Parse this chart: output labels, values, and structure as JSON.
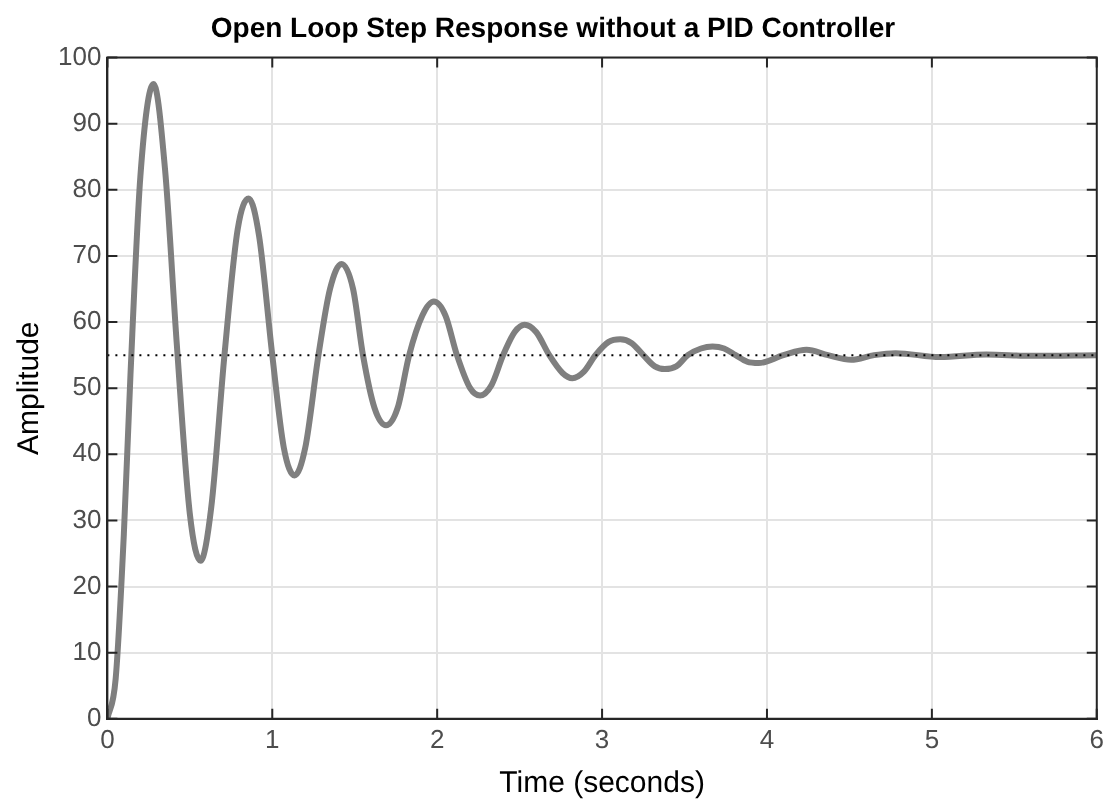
{
  "chart_data": {
    "type": "line",
    "title": "Open Loop Step Response without a PID Controller",
    "xlabel": "Time (seconds)",
    "ylabel": "Amplitude",
    "x": [
      0,
      0.05,
      0.1,
      0.14,
      0.2,
      0.28,
      0.35,
      0.42,
      0.5,
      0.565,
      0.63,
      0.71,
      0.79,
      0.857,
      0.92,
      1.0,
      1.07,
      1.135,
      1.2,
      1.28,
      1.35,
      1.42,
      1.49,
      1.55,
      1.62,
      1.69,
      1.76,
      1.83,
      1.91,
      1.98,
      2.05,
      2.12,
      2.2,
      2.26,
      2.33,
      2.4,
      2.47,
      2.53,
      2.6,
      2.68,
      2.76,
      2.82,
      2.89,
      2.96,
      3.04,
      3.11,
      3.18,
      3.25,
      3.32,
      3.38,
      3.45,
      3.52,
      3.6,
      3.67,
      3.74,
      3.81,
      3.88,
      3.95,
      4.1,
      4.24,
      4.37,
      4.51,
      4.65,
      4.78,
      5.05,
      5.33,
      5.6,
      6
    ],
    "series": [
      {
        "color": "#7f7f7f",
        "values": [
          0,
          6,
          28,
          52,
          82,
          96,
          83,
          57,
          31,
          23.9,
          32,
          55,
          74,
          78.7,
          73,
          55,
          41,
          36.8,
          41,
          55,
          65,
          68.8,
          65,
          55,
          47,
          44.4,
          47,
          55,
          61,
          63.1,
          61,
          55,
          50,
          48.9,
          50.5,
          55,
          58.5,
          59.6,
          58.5,
          55,
          52.3,
          51.5,
          52.5,
          55,
          57,
          57.4,
          56.8,
          55,
          53.3,
          52.9,
          53.3,
          55,
          56,
          56.3,
          56,
          55,
          54,
          53.8,
          55,
          55.8,
          55,
          54.3,
          55,
          55.3,
          54.7,
          55.1,
          54.9,
          55
        ]
      }
    ],
    "xlim": [
      0,
      6
    ],
    "xticks": [
      0,
      1,
      2,
      3,
      4,
      5,
      6
    ],
    "ylim": [
      0,
      100
    ],
    "yticks": [
      0,
      10,
      20,
      30,
      40,
      50,
      60,
      70,
      80,
      90,
      100
    ],
    "ref_lines": [
      {
        "axis": "y",
        "value": 55,
        "color": "#000000",
        "line_style": "dotted"
      }
    ],
    "grid": true,
    "legend": false,
    "marker": "none",
    "line_style": "solid"
  }
}
